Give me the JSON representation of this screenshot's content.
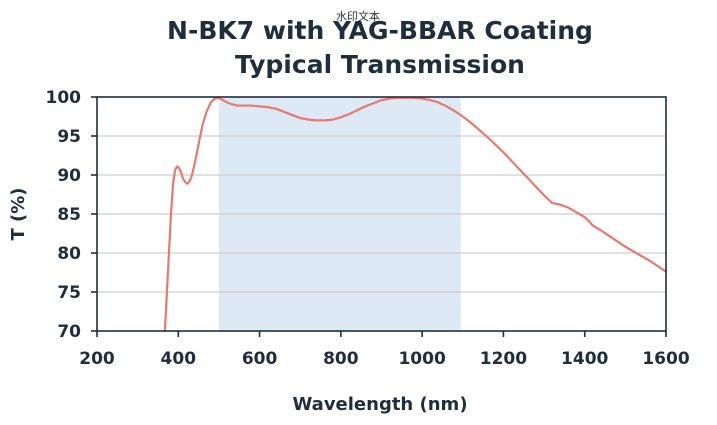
{
  "chart_data": {
    "type": "line",
    "title_line1": "N-BK7 with YAG-BBAR Coating",
    "title_line2": "Typical Transmission",
    "watermark": "水印文本",
    "xlabel": "Wavelength (nm)",
    "ylabel": "T (%)",
    "xlim": [
      200,
      1600
    ],
    "ylim": [
      70,
      100
    ],
    "xticks": [
      200,
      400,
      600,
      800,
      1000,
      1200,
      1400,
      1600
    ],
    "yticks": [
      70,
      75,
      80,
      85,
      90,
      95,
      100
    ],
    "grid": "horizontal",
    "band": {
      "x_start": 500,
      "x_end": 1095,
      "color": "#dde9f4"
    },
    "line_color": "#e67a6e",
    "series": [
      {
        "x": [
          367,
          372,
          377,
          382,
          387,
          392,
          397,
          402,
          407,
          412,
          417,
          422,
          427,
          432,
          437,
          442,
          447,
          452,
          460,
          470,
          480,
          490,
          500,
          510,
          520,
          530,
          545,
          560,
          580,
          600,
          620,
          640,
          660,
          680,
          700,
          720,
          740,
          760,
          780,
          800,
          820,
          840,
          860,
          880,
          900,
          920,
          940,
          960,
          980,
          1000,
          1020,
          1040,
          1060,
          1080,
          1100,
          1120,
          1140,
          1160,
          1180,
          1200,
          1220,
          1240,
          1260,
          1280,
          1300,
          1320,
          1340,
          1360,
          1380,
          1400,
          1410,
          1420,
          1440,
          1460,
          1480,
          1500,
          1520,
          1540,
          1560,
          1580,
          1600
        ],
        "y": [
          70.0,
          75.0,
          80.0,
          85.0,
          88.8,
          90.6,
          91.1,
          90.9,
          90.3,
          89.5,
          89.1,
          88.9,
          89.1,
          89.7,
          90.7,
          91.9,
          93.2,
          94.5,
          96.5,
          98.2,
          99.3,
          99.8,
          99.9,
          99.6,
          99.3,
          99.1,
          98.9,
          98.9,
          98.9,
          98.8,
          98.7,
          98.5,
          98.1,
          97.7,
          97.3,
          97.1,
          97.0,
          97.0,
          97.1,
          97.4,
          97.8,
          98.3,
          98.8,
          99.2,
          99.6,
          99.8,
          99.9,
          99.9,
          99.9,
          99.8,
          99.6,
          99.3,
          98.8,
          98.2,
          97.5,
          96.7,
          95.8,
          94.9,
          93.9,
          92.9,
          91.8,
          90.7,
          89.6,
          88.5,
          87.4,
          86.4,
          86.2,
          85.8,
          85.2,
          84.6,
          84.1,
          83.5,
          82.9,
          82.2,
          81.5,
          80.8,
          80.2,
          79.6,
          79.0,
          78.3,
          77.6
        ]
      }
    ]
  }
}
